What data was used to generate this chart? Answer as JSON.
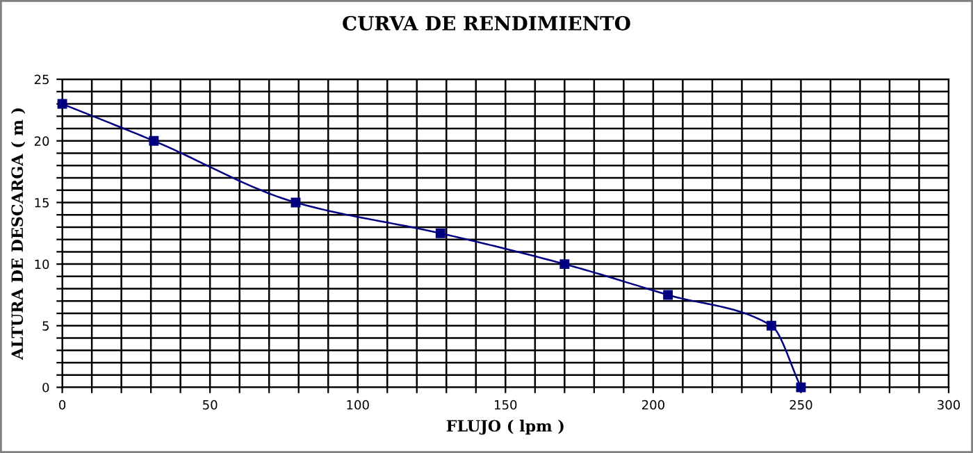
{
  "chart_data": {
    "type": "line",
    "title": "CURVA DE RENDIMIENTO",
    "xlabel": "FLUJO ( lpm )",
    "ylabel": "ALTURA DE DESCARGA ( m )",
    "x": [
      0,
      31,
      79,
      128,
      170,
      205,
      240,
      250
    ],
    "series": [
      {
        "color": "#000080",
        "values": [
          23,
          20,
          15,
          12.5,
          10,
          7.5,
          5,
          0
        ]
      }
    ],
    "xlim": [
      0,
      300
    ],
    "xticks": [
      0,
      {
        "value": 10,
        "label": null
      },
      {
        "value": 20,
        "label": null
      },
      {
        "value": 30,
        "label": null
      },
      {
        "value": 40,
        "label": null
      },
      50,
      {
        "value": 60,
        "label": null
      },
      {
        "value": 70,
        "label": null
      },
      {
        "value": 80,
        "label": null
      },
      {
        "value": 90,
        "label": null
      },
      100,
      {
        "value": 110,
        "label": null
      },
      {
        "value": 120,
        "label": null
      },
      {
        "value": 130,
        "label": null
      },
      {
        "value": 140,
        "label": null
      },
      150,
      {
        "value": 160,
        "label": null
      },
      {
        "value": 170,
        "label": null
      },
      {
        "value": 180,
        "label": null
      },
      {
        "value": 190,
        "label": null
      },
      200,
      {
        "value": 210,
        "label": null
      },
      {
        "value": 220,
        "label": null
      },
      {
        "value": 230,
        "label": null
      },
      {
        "value": 240,
        "label": null
      },
      250,
      {
        "value": 260,
        "label": null
      },
      {
        "value": 270,
        "label": null
      },
      {
        "value": 280,
        "label": null
      },
      {
        "value": 290,
        "label": null
      },
      300
    ],
    "ylim": [
      0,
      25
    ],
    "yticks": [
      0,
      {
        "value": 1,
        "label": null
      },
      {
        "value": 2,
        "label": null
      },
      {
        "value": 3,
        "label": null
      },
      {
        "value": 4,
        "label": null
      },
      5,
      {
        "value": 6,
        "label": null
      },
      {
        "value": 7,
        "label": null
      },
      {
        "value": 8,
        "label": null
      },
      {
        "value": 9,
        "label": null
      },
      10,
      {
        "value": 11,
        "label": null
      },
      {
        "value": 12,
        "label": null
      },
      {
        "value": 13,
        "label": null
      },
      {
        "value": 14,
        "label": null
      },
      15,
      {
        "value": 16,
        "label": null
      },
      {
        "value": 17,
        "label": null
      },
      {
        "value": 18,
        "label": null
      },
      {
        "value": 19,
        "label": null
      },
      20,
      {
        "value": 21,
        "label": null
      },
      {
        "value": 22,
        "label": null
      },
      {
        "value": 23,
        "label": null
      },
      {
        "value": 24,
        "label": null
      },
      25
    ],
    "grid": true,
    "marker": "square",
    "line_style": "solid",
    "legend": false
  }
}
